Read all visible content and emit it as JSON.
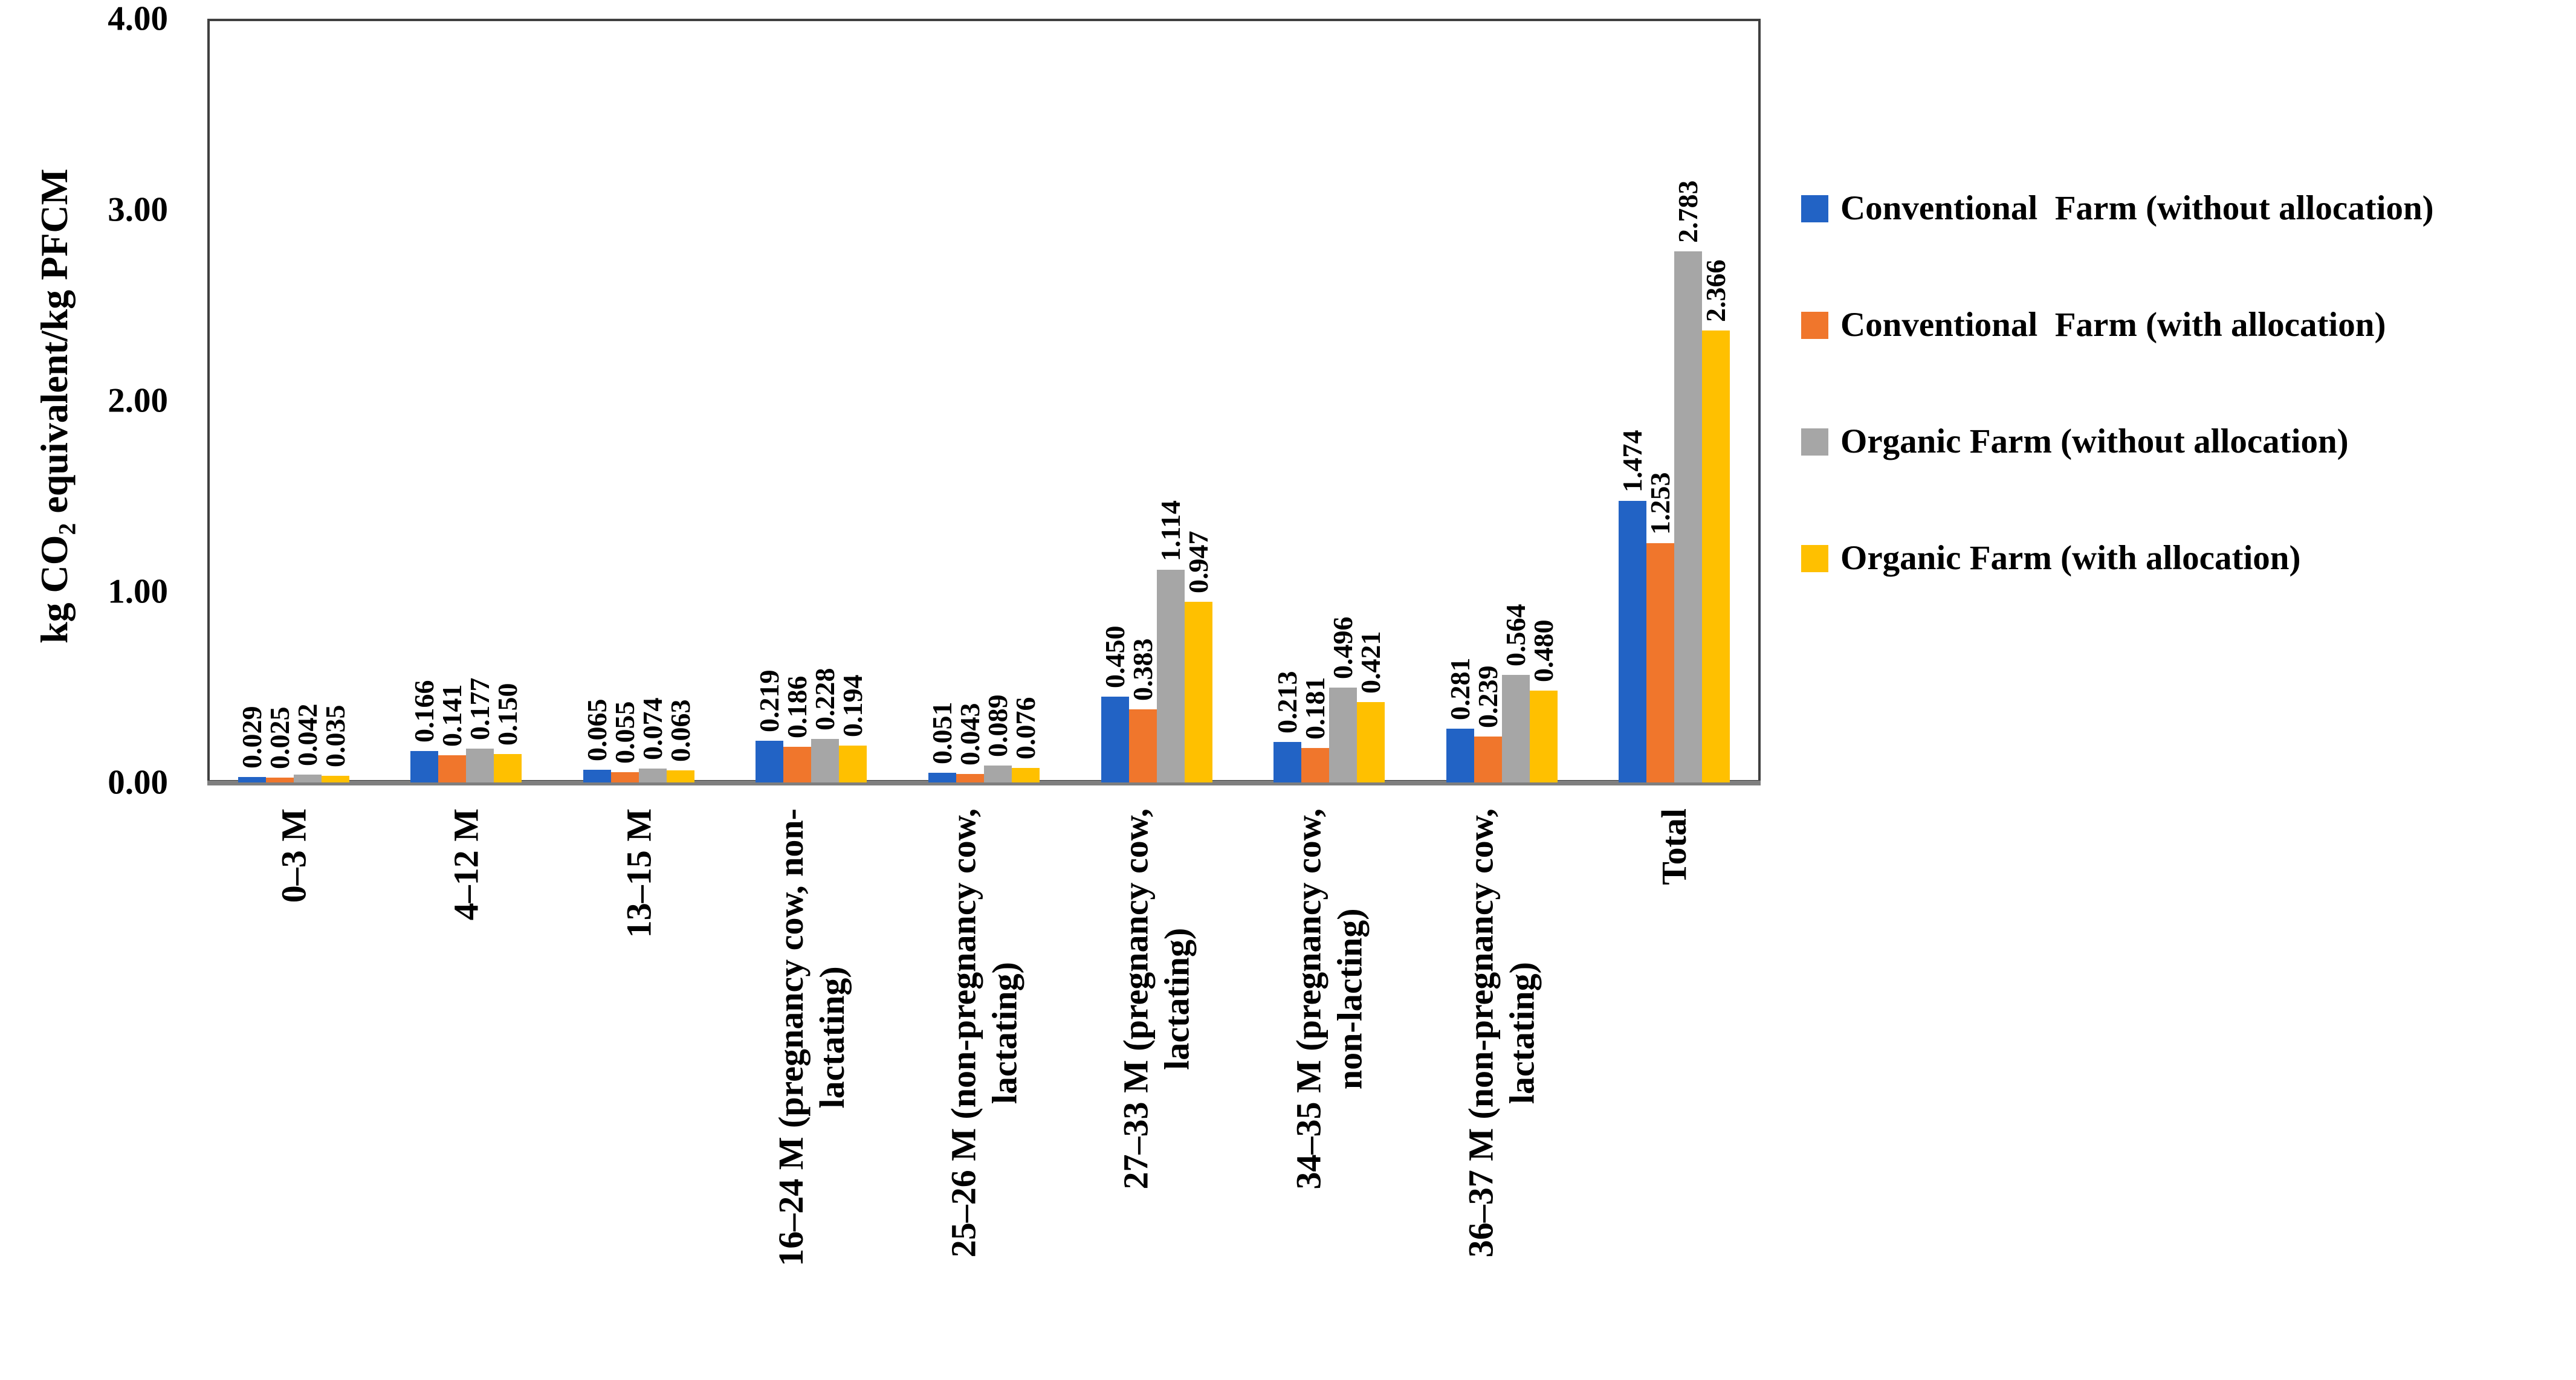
{
  "figure": {
    "background": "#ffffff"
  },
  "chart_data": {
    "type": "bar",
    "title": "",
    "ylabel_prefix": "kg CO",
    "ylabel_sub": "2",
    "ylabel_suffix": " equivalent/kg PFCM",
    "ylabel_plain": "kg CO2 equivalent/kg PFCM",
    "xlabel": "",
    "ylim": [
      0,
      4
    ],
    "yticks": [
      "0.00",
      "1.00",
      "2.00",
      "3.00",
      "4.00"
    ],
    "grid": false,
    "legend_position": "right",
    "value_label_decimals": 3,
    "value_labels_rotated": true,
    "x_labels_rotated": true,
    "categories": [
      {
        "lines": [
          "0–3 M"
        ]
      },
      {
        "lines": [
          "4–12 M"
        ]
      },
      {
        "lines": [
          "13–15 M"
        ]
      },
      {
        "lines": [
          "16–24 M (pregnancy cow, non-",
          "lactating)"
        ]
      },
      {
        "lines": [
          "25–26 M (non-pregnancy cow,",
          "lactating)"
        ]
      },
      {
        "lines": [
          "27–33 M (pregnancy cow,",
          "lactating)"
        ]
      },
      {
        "lines": [
          "34–35 M (pregnancy cow,",
          "non-lacting)"
        ]
      },
      {
        "lines": [
          "36–37 M (non-pregnancy cow,",
          "lactating)"
        ]
      },
      {
        "lines": [
          "Total"
        ]
      }
    ],
    "series": [
      {
        "name": "Conventional  Farm (without allocation)",
        "color": "#2263C5",
        "values": [
          0.029,
          0.166,
          0.065,
          0.219,
          0.051,
          0.45,
          0.213,
          0.281,
          1.474
        ]
      },
      {
        "name": "Conventional  Farm (with allocation)",
        "color": "#F0762C",
        "values": [
          0.025,
          0.141,
          0.055,
          0.186,
          0.043,
          0.383,
          0.181,
          0.239,
          1.253
        ]
      },
      {
        "name": "Organic Farm (without allocation)",
        "color": "#A6A6A6",
        "values": [
          0.042,
          0.177,
          0.074,
          0.228,
          0.089,
          1.114,
          0.496,
          0.564,
          2.783
        ]
      },
      {
        "name": "Organic Farm (with allocation)",
        "color": "#FFC000",
        "values": [
          0.035,
          0.15,
          0.063,
          0.194,
          0.076,
          0.947,
          0.421,
          0.48,
          2.366
        ]
      }
    ],
    "axis_colors": {
      "baseline": "#7F7F7F",
      "plot_border": "#404040",
      "text": "#000000"
    }
  }
}
